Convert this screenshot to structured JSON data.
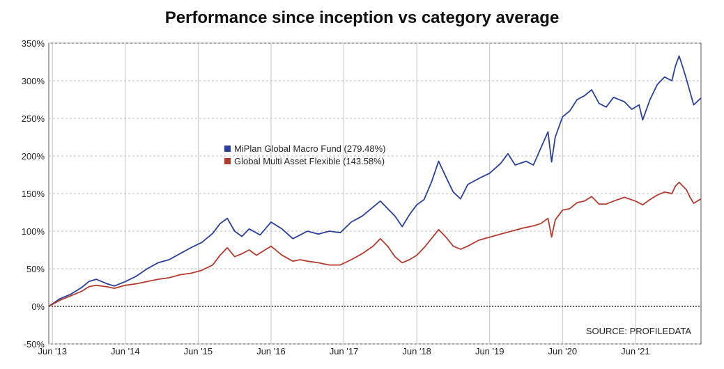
{
  "chart_data": {
    "type": "line",
    "title": "Performance since inception vs category average",
    "source": "SOURCE: PROFILEDATA",
    "y_tick_labels": [
      "350%",
      "300%",
      "250%",
      "200%",
      "150%",
      "100%",
      "50%",
      "0%",
      "-50%"
    ],
    "y_ticks": [
      350,
      300,
      250,
      200,
      150,
      100,
      50,
      0,
      -50
    ],
    "ylim": [
      -50,
      350
    ],
    "x_tick_labels": [
      "Jun '13",
      "Jun '14",
      "Jun '15",
      "Jun '16",
      "Jun '17",
      "Jun '18",
      "Jun '19",
      "Jun '20",
      "Jun '21"
    ],
    "x_ticks": [
      2013.45,
      2014.45,
      2015.45,
      2016.45,
      2017.45,
      2018.45,
      2019.45,
      2020.45,
      2021.45
    ],
    "xlim": [
      2013.4,
      2022.35
    ],
    "grid": true,
    "legend_position": "center-left",
    "series": [
      {
        "name": "MiPlan Global Macro Fund (279.48%)",
        "color": "#2a3f9c",
        "points": [
          [
            2013.4,
            0
          ],
          [
            2013.55,
            10
          ],
          [
            2013.7,
            16
          ],
          [
            2013.85,
            25
          ],
          [
            2013.95,
            33
          ],
          [
            2014.05,
            36
          ],
          [
            2014.2,
            30
          ],
          [
            2014.3,
            27
          ],
          [
            2014.45,
            33
          ],
          [
            2014.6,
            40
          ],
          [
            2014.75,
            50
          ],
          [
            2014.9,
            58
          ],
          [
            2015.05,
            62
          ],
          [
            2015.2,
            70
          ],
          [
            2015.35,
            78
          ],
          [
            2015.5,
            85
          ],
          [
            2015.65,
            97
          ],
          [
            2015.75,
            110
          ],
          [
            2015.85,
            117
          ],
          [
            2015.95,
            100
          ],
          [
            2016.05,
            93
          ],
          [
            2016.15,
            103
          ],
          [
            2016.3,
            95
          ],
          [
            2016.45,
            112
          ],
          [
            2016.6,
            103
          ],
          [
            2016.75,
            90
          ],
          [
            2016.85,
            95
          ],
          [
            2016.95,
            100
          ],
          [
            2017.1,
            96
          ],
          [
            2017.25,
            100
          ],
          [
            2017.4,
            98
          ],
          [
            2017.55,
            112
          ],
          [
            2017.7,
            120
          ],
          [
            2017.85,
            132
          ],
          [
            2017.95,
            140
          ],
          [
            2018.05,
            130
          ],
          [
            2018.15,
            120
          ],
          [
            2018.25,
            106
          ],
          [
            2018.35,
            122
          ],
          [
            2018.45,
            135
          ],
          [
            2018.55,
            142
          ],
          [
            2018.65,
            165
          ],
          [
            2018.75,
            193
          ],
          [
            2018.85,
            172
          ],
          [
            2018.95,
            152
          ],
          [
            2019.05,
            143
          ],
          [
            2019.15,
            162
          ],
          [
            2019.3,
            170
          ],
          [
            2019.45,
            177
          ],
          [
            2019.6,
            190
          ],
          [
            2019.7,
            203
          ],
          [
            2019.8,
            188
          ],
          [
            2019.95,
            193
          ],
          [
            2020.05,
            188
          ],
          [
            2020.15,
            210
          ],
          [
            2020.25,
            232
          ],
          [
            2020.3,
            192
          ],
          [
            2020.35,
            225
          ],
          [
            2020.45,
            252
          ],
          [
            2020.55,
            260
          ],
          [
            2020.65,
            275
          ],
          [
            2020.75,
            280
          ],
          [
            2020.85,
            288
          ],
          [
            2020.95,
            270
          ],
          [
            2021.05,
            265
          ],
          [
            2021.15,
            278
          ],
          [
            2021.3,
            272
          ],
          [
            2021.4,
            262
          ],
          [
            2021.5,
            268
          ],
          [
            2021.55,
            248
          ],
          [
            2021.65,
            275
          ],
          [
            2021.75,
            295
          ],
          [
            2021.85,
            305
          ],
          [
            2021.95,
            300
          ],
          [
            2022.0,
            320
          ],
          [
            2022.05,
            333
          ],
          [
            2022.1,
            318
          ],
          [
            2022.15,
            302
          ],
          [
            2022.2,
            285
          ],
          [
            2022.25,
            268
          ],
          [
            2022.35,
            277
          ]
        ]
      },
      {
        "name": "Global Multi Asset Flexible (143.58%)",
        "color": "#b53a2e",
        "points": [
          [
            2013.4,
            0
          ],
          [
            2013.55,
            8
          ],
          [
            2013.7,
            14
          ],
          [
            2013.85,
            20
          ],
          [
            2013.95,
            26
          ],
          [
            2014.05,
            28
          ],
          [
            2014.2,
            26
          ],
          [
            2014.3,
            24
          ],
          [
            2014.45,
            28
          ],
          [
            2014.6,
            30
          ],
          [
            2014.75,
            33
          ],
          [
            2014.9,
            36
          ],
          [
            2015.05,
            38
          ],
          [
            2015.2,
            42
          ],
          [
            2015.35,
            44
          ],
          [
            2015.5,
            48
          ],
          [
            2015.65,
            55
          ],
          [
            2015.75,
            68
          ],
          [
            2015.85,
            78
          ],
          [
            2015.95,
            66
          ],
          [
            2016.05,
            70
          ],
          [
            2016.15,
            75
          ],
          [
            2016.25,
            68
          ],
          [
            2016.45,
            80
          ],
          [
            2016.6,
            68
          ],
          [
            2016.75,
            60
          ],
          [
            2016.85,
            62
          ],
          [
            2016.95,
            60
          ],
          [
            2017.1,
            58
          ],
          [
            2017.25,
            55
          ],
          [
            2017.4,
            55
          ],
          [
            2017.55,
            62
          ],
          [
            2017.7,
            70
          ],
          [
            2017.85,
            80
          ],
          [
            2017.95,
            90
          ],
          [
            2018.05,
            80
          ],
          [
            2018.15,
            66
          ],
          [
            2018.25,
            58
          ],
          [
            2018.35,
            62
          ],
          [
            2018.45,
            68
          ],
          [
            2018.55,
            78
          ],
          [
            2018.65,
            90
          ],
          [
            2018.75,
            102
          ],
          [
            2018.85,
            92
          ],
          [
            2018.95,
            80
          ],
          [
            2019.05,
            76
          ],
          [
            2019.15,
            80
          ],
          [
            2019.3,
            88
          ],
          [
            2019.45,
            92
          ],
          [
            2019.6,
            96
          ],
          [
            2019.75,
            100
          ],
          [
            2019.9,
            104
          ],
          [
            2020.05,
            107
          ],
          [
            2020.15,
            110
          ],
          [
            2020.25,
            117
          ],
          [
            2020.3,
            92
          ],
          [
            2020.35,
            115
          ],
          [
            2020.45,
            128
          ],
          [
            2020.55,
            130
          ],
          [
            2020.65,
            138
          ],
          [
            2020.75,
            140
          ],
          [
            2020.85,
            146
          ],
          [
            2020.95,
            136
          ],
          [
            2021.05,
            136
          ],
          [
            2021.15,
            140
          ],
          [
            2021.3,
            145
          ],
          [
            2021.45,
            140
          ],
          [
            2021.55,
            135
          ],
          [
            2021.65,
            142
          ],
          [
            2021.75,
            148
          ],
          [
            2021.85,
            152
          ],
          [
            2021.95,
            150
          ],
          [
            2022.0,
            160
          ],
          [
            2022.05,
            165
          ],
          [
            2022.1,
            160
          ],
          [
            2022.15,
            155
          ],
          [
            2022.2,
            145
          ],
          [
            2022.25,
            137
          ],
          [
            2022.35,
            143
          ]
        ]
      }
    ]
  }
}
